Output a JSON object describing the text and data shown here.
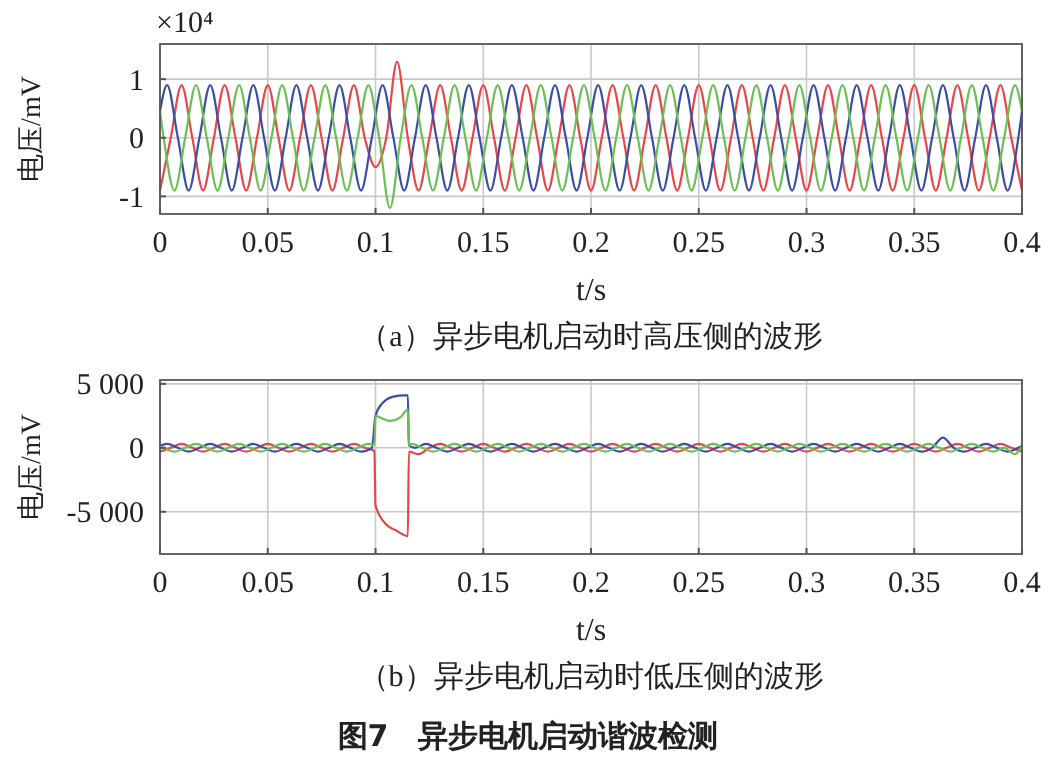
{
  "chart_data": [
    {
      "type": "line",
      "title": "（a）异步电机启动时高压侧的波形",
      "xlabel": "t/s",
      "ylabel": "电压/mV",
      "annotations": [
        "×10⁴"
      ],
      "xlim": [
        0,
        0.4
      ],
      "xticks": [
        0,
        0.05,
        0.1,
        0.15,
        0.2,
        0.25,
        0.3,
        0.35,
        0.4
      ],
      "ylim": [
        -1.3,
        1.6
      ],
      "yticks": [
        -1,
        0,
        1
      ],
      "grid": true,
      "series": [
        {
          "color": "#e8474a",
          "x": [
            0,
            0.005,
            0.01,
            0.015,
            0.02,
            0.025,
            0.03,
            0.035,
            0.04,
            0.045,
            0.05,
            0.055,
            0.06,
            0.065,
            0.07,
            0.075,
            0.08,
            0.085,
            0.09,
            0.095,
            0.1,
            0.105,
            0.11,
            0.115,
            0.12,
            0.125,
            0.13,
            0.135,
            0.14,
            0.145,
            0.15,
            0.155,
            0.16,
            0.165,
            0.17,
            0.175,
            0.18,
            0.185,
            0.19,
            0.195,
            0.2,
            0.205,
            0.21,
            0.215,
            0.22,
            0.225,
            0.23,
            0.235,
            0.24,
            0.245,
            0.25,
            0.255,
            0.26,
            0.265,
            0.27,
            0.275,
            0.28,
            0.285,
            0.29,
            0.295,
            0.3,
            0.305,
            0.31,
            0.315,
            0.32,
            0.325,
            0.33,
            0.335,
            0.34,
            0.345,
            0.35,
            0.355,
            0.36,
            0.365,
            0.37,
            0.375,
            0.38,
            0.385,
            0.39,
            0.395,
            0.4
          ],
          "values": [
            -0.9,
            0,
            0.9,
            0,
            -0.9,
            0,
            0.9,
            0,
            -0.9,
            0,
            0.9,
            0,
            -0.9,
            0,
            0.9,
            0,
            -0.9,
            0,
            0.9,
            0,
            -0.5,
            0,
            1.3,
            0,
            -0.9,
            0,
            0.9,
            0,
            -0.9,
            0,
            0.9,
            0,
            -0.9,
            0,
            0.9,
            0,
            -0.9,
            0,
            0.9,
            0,
            -0.9,
            0,
            0.9,
            0,
            -0.9,
            0,
            0.9,
            0,
            -0.9,
            0,
            0.9,
            0,
            -0.9,
            0,
            0.9,
            0,
            -0.9,
            0,
            0.9,
            0,
            -0.9,
            0,
            0.9,
            0,
            -0.9,
            0,
            0.9,
            0,
            -0.9,
            0,
            0.9,
            0,
            -0.9,
            0,
            0.9,
            0,
            -0.9,
            0,
            0.9,
            0,
            -0.9
          ]
        },
        {
          "color": "#3b4ea6",
          "x": [
            0,
            0.0033,
            0.0083,
            0.0133,
            0.0183,
            0.0233,
            0.0283,
            0.0333,
            0.0383,
            0.0433,
            0.0483,
            0.0533,
            0.0583,
            0.0633,
            0.0683,
            0.0733,
            0.0783,
            0.0833,
            0.0883,
            0.0933,
            0.0983,
            0.1033,
            0.1083,
            0.1133,
            0.1183,
            0.1233,
            0.1283,
            0.1333,
            0.1383,
            0.1433,
            0.1483,
            0.1533,
            0.1583,
            0.1633,
            0.1683,
            0.1733,
            0.1783,
            0.1833,
            0.1883,
            0.1933,
            0.1983,
            0.2033,
            0.2083,
            0.2133,
            0.2183,
            0.2233,
            0.2283,
            0.2333,
            0.2383,
            0.2433,
            0.2483,
            0.2533,
            0.2583,
            0.2633,
            0.2683,
            0.2733,
            0.2783,
            0.2833,
            0.2883,
            0.2933,
            0.2983,
            0.3033,
            0.3083,
            0.3133,
            0.3183,
            0.3233,
            0.3283,
            0.3333,
            0.3383,
            0.3433,
            0.3483,
            0.3533,
            0.3583,
            0.3633,
            0.3683,
            0.3733,
            0.3783,
            0.3833,
            0.3883,
            0.3933,
            0.3983,
            0.4
          ],
          "values": [
            0.45,
            0.9,
            0,
            -0.9,
            0,
            0.9,
            0,
            -0.9,
            0,
            0.9,
            0,
            -0.9,
            0,
            0.9,
            0,
            -0.9,
            0,
            0.9,
            0,
            -0.9,
            0,
            0.9,
            0,
            -0.9,
            0,
            0.9,
            0,
            -0.9,
            0,
            0.9,
            0,
            -0.9,
            0,
            0.9,
            0,
            -0.9,
            0,
            0.9,
            0,
            -0.9,
            0,
            0.9,
            0,
            -0.9,
            0,
            0.9,
            0,
            -0.9,
            0,
            0.9,
            0,
            -0.9,
            0,
            0.9,
            0,
            -0.9,
            0,
            0.9,
            0,
            -0.9,
            0,
            0.9,
            0,
            -0.9,
            0,
            0.9,
            0,
            -0.9,
            0,
            0.9,
            0,
            -0.9,
            0,
            0.9,
            0,
            -0.9,
            0,
            0.9,
            0,
            -0.9,
            0,
            0.45
          ]
        },
        {
          "color": "#6cbf55",
          "x": [
            0,
            0.0017,
            0.0067,
            0.0117,
            0.0167,
            0.0217,
            0.0267,
            0.0317,
            0.0367,
            0.0417,
            0.0467,
            0.0517,
            0.0567,
            0.0617,
            0.0667,
            0.0717,
            0.0767,
            0.0817,
            0.0867,
            0.0917,
            0.0967,
            0.1017,
            0.1067,
            0.1117,
            0.1167,
            0.1217,
            0.1267,
            0.1317,
            0.1367,
            0.1417,
            0.1467,
            0.1517,
            0.1567,
            0.1617,
            0.1667,
            0.1717,
            0.1767,
            0.1817,
            0.1867,
            0.1917,
            0.1967,
            0.2017,
            0.2067,
            0.2117,
            0.2167,
            0.2217,
            0.2267,
            0.2317,
            0.2367,
            0.2417,
            0.2467,
            0.2517,
            0.2567,
            0.2617,
            0.2667,
            0.2717,
            0.2767,
            0.2817,
            0.2867,
            0.2917,
            0.2967,
            0.3017,
            0.3067,
            0.3117,
            0.3167,
            0.3217,
            0.3267,
            0.3317,
            0.3367,
            0.3417,
            0.3467,
            0.3517,
            0.3567,
            0.3617,
            0.3667,
            0.3717,
            0.3767,
            0.3817,
            0.3867,
            0.3917,
            0.3967,
            0.4
          ],
          "values": [
            0.45,
            0,
            -0.9,
            0,
            0.9,
            0,
            -0.9,
            0,
            0.9,
            0,
            -0.9,
            0,
            0.9,
            0,
            -0.9,
            0,
            0.9,
            0,
            -0.9,
            0,
            0.9,
            0,
            -1.2,
            0,
            0.9,
            0,
            -0.9,
            0,
            0.9,
            0,
            -0.9,
            0,
            0.9,
            0,
            -0.9,
            0,
            0.9,
            0,
            -0.9,
            0,
            0.9,
            0,
            -0.9,
            0,
            0.9,
            0,
            -0.9,
            0,
            0.9,
            0,
            -0.9,
            0,
            0.9,
            0,
            -0.9,
            0,
            0.9,
            0,
            -0.9,
            0,
            0.9,
            0,
            -0.9,
            0,
            0.9,
            0,
            -0.9,
            0,
            0.9,
            0,
            -0.9,
            0,
            0.9,
            0,
            -0.9,
            0,
            0.9,
            0,
            -0.9,
            0,
            0.9,
            0.45
          ]
        }
      ]
    },
    {
      "type": "line",
      "title": "（b）异步电机启动时低压侧的波形",
      "xlabel": "t/s",
      "ylabel": "电压/mV",
      "annotations": [
        "图7　异步电机启动谐波检测"
      ],
      "xlim": [
        0,
        0.4
      ],
      "xticks": [
        0,
        0.05,
        0.1,
        0.15,
        0.2,
        0.25,
        0.3,
        0.35,
        0.4
      ],
      "ylim": [
        -8300,
        5300
      ],
      "yticks": [
        {
          "value": -5000,
          "label": "-5 000"
        },
        0,
        {
          "value": 5000,
          "label": "5 000"
        }
      ],
      "grid": true,
      "series": [
        {
          "color": "#e8474a",
          "x": [
            0,
            0.005,
            0.01,
            0.015,
            0.02,
            0.025,
            0.03,
            0.035,
            0.04,
            0.045,
            0.05,
            0.055,
            0.06,
            0.065,
            0.07,
            0.075,
            0.08,
            0.085,
            0.09,
            0.095,
            0.0995,
            0.1,
            0.105,
            0.11,
            0.115,
            0.1155,
            0.12,
            0.125,
            0.13,
            0.135,
            0.14,
            0.145,
            0.15,
            0.155,
            0.16,
            0.165,
            0.17,
            0.175,
            0.18,
            0.185,
            0.19,
            0.195,
            0.2,
            0.205,
            0.21,
            0.215,
            0.22,
            0.225,
            0.23,
            0.235,
            0.24,
            0.245,
            0.25,
            0.255,
            0.26,
            0.265,
            0.27,
            0.275,
            0.28,
            0.285,
            0.29,
            0.295,
            0.3,
            0.305,
            0.31,
            0.315,
            0.32,
            0.325,
            0.33,
            0.335,
            0.34,
            0.345,
            0.35,
            0.355,
            0.36,
            0.365,
            0.37,
            0.375,
            0.38,
            0.385,
            0.39,
            0.395,
            0.4
          ],
          "values": [
            -300,
            0,
            300,
            0,
            -300,
            0,
            300,
            0,
            -300,
            0,
            300,
            0,
            -300,
            0,
            300,
            0,
            -300,
            0,
            300,
            0,
            -250,
            -4500,
            -6000,
            -6500,
            -6900,
            -300,
            -500,
            0,
            300,
            0,
            -300,
            0,
            300,
            0,
            -300,
            0,
            300,
            0,
            -300,
            0,
            300,
            0,
            -300,
            0,
            300,
            0,
            -300,
            0,
            300,
            0,
            -300,
            0,
            300,
            0,
            -300,
            0,
            300,
            0,
            -300,
            0,
            300,
            0,
            -300,
            0,
            300,
            0,
            -300,
            0,
            300,
            0,
            -300,
            0,
            300,
            0,
            -300,
            0,
            300,
            0,
            -300,
            0,
            300,
            0,
            -300
          ]
        },
        {
          "color": "#3b4ea6",
          "x": [
            0,
            0.0033,
            0.0083,
            0.0133,
            0.0183,
            0.0233,
            0.0283,
            0.0333,
            0.0383,
            0.0433,
            0.0483,
            0.0533,
            0.0583,
            0.0633,
            0.0683,
            0.0733,
            0.0783,
            0.0833,
            0.0883,
            0.0933,
            0.0983,
            0.1,
            0.1033,
            0.1083,
            0.1133,
            0.115,
            0.1155,
            0.1183,
            0.1233,
            0.1283,
            0.1333,
            0.1383,
            0.1433,
            0.1483,
            0.1533,
            0.1583,
            0.1633,
            0.1683,
            0.1733,
            0.1783,
            0.1833,
            0.1883,
            0.1933,
            0.1983,
            0.2033,
            0.2083,
            0.2133,
            0.2183,
            0.2233,
            0.2283,
            0.2333,
            0.2383,
            0.2433,
            0.2483,
            0.2533,
            0.2583,
            0.2633,
            0.2683,
            0.2733,
            0.2783,
            0.2833,
            0.2883,
            0.2933,
            0.2983,
            0.3033,
            0.3083,
            0.3133,
            0.3183,
            0.3233,
            0.3283,
            0.3333,
            0.3383,
            0.3433,
            0.3483,
            0.3533,
            0.3583,
            0.3633,
            0.3683,
            0.3733,
            0.3783,
            0.3833,
            0.3883,
            0.3933,
            0.3983,
            0.4
          ],
          "values": [
            150,
            300,
            0,
            -300,
            0,
            300,
            0,
            -300,
            0,
            300,
            0,
            -300,
            0,
            300,
            0,
            -300,
            0,
            300,
            0,
            -300,
            0,
            2500,
            3500,
            4000,
            4100,
            4100,
            200,
            0,
            300,
            0,
            -300,
            0,
            300,
            0,
            -300,
            0,
            300,
            0,
            -300,
            0,
            300,
            0,
            -300,
            0,
            300,
            0,
            -300,
            0,
            300,
            0,
            -300,
            0,
            300,
            0,
            -300,
            0,
            300,
            0,
            -300,
            0,
            300,
            0,
            -300,
            0,
            300,
            0,
            -300,
            0,
            300,
            0,
            -300,
            0,
            300,
            0,
            -300,
            0,
            800,
            0,
            -300,
            0,
            300,
            0,
            -300,
            0,
            150
          ]
        },
        {
          "color": "#6cbf55",
          "x": [
            0,
            0.0017,
            0.0067,
            0.0117,
            0.0167,
            0.0217,
            0.0267,
            0.0317,
            0.0367,
            0.0417,
            0.0467,
            0.0517,
            0.0567,
            0.0617,
            0.0667,
            0.0717,
            0.0767,
            0.0817,
            0.0867,
            0.0917,
            0.0967,
            0.0995,
            0.1,
            0.1017,
            0.1067,
            0.1117,
            0.115,
            0.1155,
            0.1167,
            0.1217,
            0.1267,
            0.1317,
            0.1367,
            0.1417,
            0.1467,
            0.1517,
            0.1567,
            0.1617,
            0.1667,
            0.1717,
            0.1767,
            0.1817,
            0.1867,
            0.1917,
            0.1967,
            0.2017,
            0.2067,
            0.2117,
            0.2167,
            0.2217,
            0.2267,
            0.2317,
            0.2367,
            0.2417,
            0.2467,
            0.2517,
            0.2567,
            0.2617,
            0.2667,
            0.2717,
            0.2767,
            0.2817,
            0.2867,
            0.2917,
            0.2967,
            0.3017,
            0.3067,
            0.3117,
            0.3167,
            0.3217,
            0.3267,
            0.3317,
            0.3367,
            0.3417,
            0.3467,
            0.3517,
            0.3567,
            0.3617,
            0.3667,
            0.3717,
            0.3767,
            0.3817,
            0.3867,
            0.3917,
            0.3967,
            0.4
          ],
          "values": [
            150,
            0,
            -300,
            0,
            300,
            0,
            -300,
            0,
            300,
            0,
            -300,
            0,
            300,
            0,
            -300,
            0,
            300,
            0,
            -300,
            0,
            300,
            250,
            2500,
            2400,
            2100,
            2400,
            3000,
            200,
            300,
            0,
            -300,
            0,
            300,
            0,
            -300,
            0,
            300,
            0,
            -300,
            0,
            300,
            0,
            -300,
            0,
            300,
            0,
            -300,
            0,
            300,
            0,
            -300,
            0,
            300,
            0,
            -300,
            0,
            300,
            0,
            -300,
            0,
            300,
            0,
            -300,
            0,
            300,
            0,
            -300,
            0,
            300,
            0,
            -300,
            0,
            300,
            0,
            -300,
            0,
            300,
            0,
            -300,
            0,
            300,
            0,
            -300,
            0,
            -500,
            150
          ]
        }
      ]
    }
  ]
}
